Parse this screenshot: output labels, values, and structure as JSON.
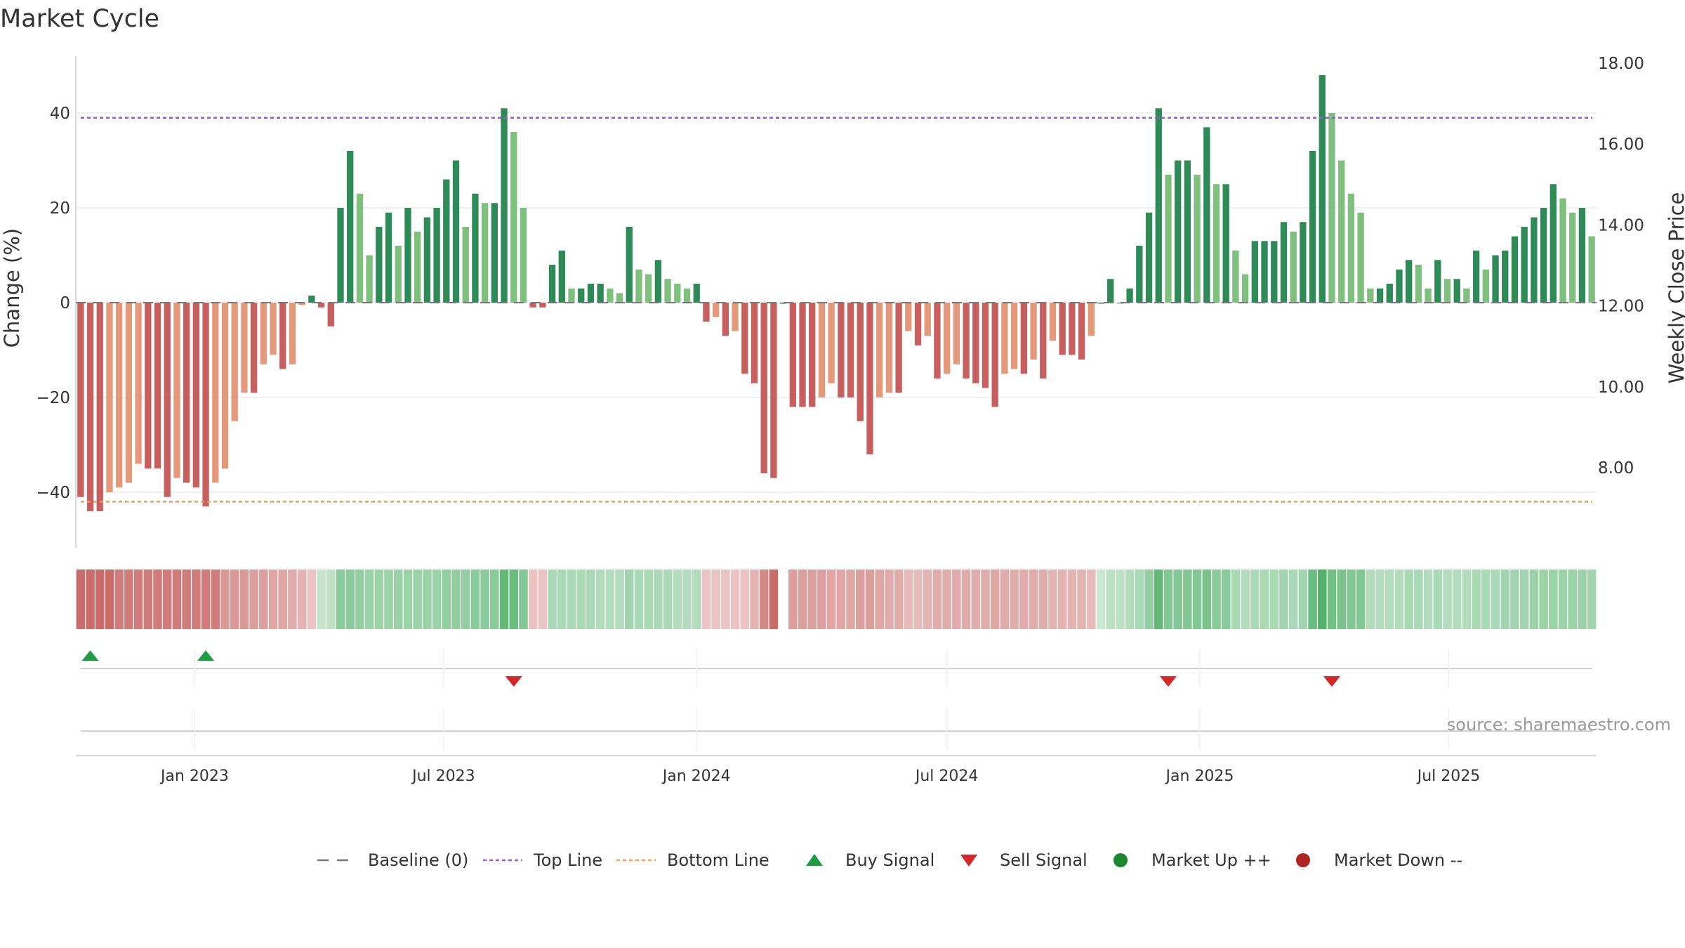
{
  "chart_data": {
    "type": "bar",
    "title": "Market Cycle",
    "ylabel": "Change (%)",
    "y2label": "Weekly Close Price",
    "ylim": [
      -52,
      52
    ],
    "y2lim": [
      6.3,
      18.5
    ],
    "yticks": [
      "40",
      "20",
      "0",
      "−20",
      "−40"
    ],
    "y2ticks": [
      "18.00",
      "16.00",
      "14.00",
      "12.00",
      "10.00",
      "8.00"
    ],
    "grid": true,
    "legend_position": "bottom",
    "start_date": "2022-10-10",
    "week_step_days": 7,
    "date_ticks": [
      {
        "date": "2023-01-01",
        "label": "Jan 2023"
      },
      {
        "date": "2023-07-01",
        "label": "Jul 2023"
      },
      {
        "date": "2024-01-01",
        "label": "Jan 2024"
      },
      {
        "date": "2024-07-01",
        "label": "Jul 2024"
      },
      {
        "date": "2025-01-01",
        "label": "Jan 2025"
      },
      {
        "date": "2025-07-01",
        "label": "Jul 2025"
      }
    ],
    "top_line": 39,
    "bottom_line": -42,
    "values": [
      -41,
      -44,
      -44,
      -40,
      -39,
      -38,
      -34,
      -35,
      -35,
      -41,
      -37,
      -38,
      -39,
      -43,
      -38,
      -35,
      -25,
      -19,
      -19,
      -13,
      -11,
      -14,
      -13,
      -0.5,
      1.5,
      -1,
      -5,
      20,
      32,
      23,
      10,
      16,
      19,
      12,
      20,
      15,
      18,
      20,
      26,
      30,
      16,
      23,
      21,
      21,
      41,
      36,
      20,
      -1,
      -1,
      8,
      11,
      3,
      3,
      4,
      4,
      3,
      2,
      16,
      7,
      6,
      9,
      5,
      4,
      3,
      4,
      -4,
      -3,
      -7,
      -6,
      -15,
      -17,
      -36,
      -37,
      0,
      -22,
      -22,
      -22,
      -20,
      -17,
      -20,
      -20,
      -25,
      -32,
      -20,
      -19,
      -19,
      -6,
      -9,
      -7,
      -16,
      -15,
      -13,
      -16,
      -17,
      -18,
      -22,
      -15,
      -14,
      -15,
      -12,
      -16,
      -8,
      -11,
      -11,
      -12,
      -7,
      0,
      5,
      0,
      3,
      12,
      19,
      41,
      27,
      30,
      30,
      27,
      37,
      25,
      25,
      11,
      6,
      13,
      13,
      13,
      17,
      15,
      17,
      32,
      48,
      40,
      30,
      23,
      19,
      3,
      3,
      4,
      7,
      9,
      8,
      3,
      9,
      5,
      5,
      3,
      11,
      7,
      10,
      11,
      14,
      16,
      18,
      20,
      25,
      22,
      19,
      20,
      14
    ],
    "cycle_strength": [
      -0.8,
      -0.8,
      -0.8,
      -0.8,
      -0.7,
      -0.7,
      -0.7,
      -0.7,
      -0.7,
      -0.7,
      -0.7,
      -0.7,
      -0.7,
      -0.7,
      -0.7,
      -0.5,
      -0.5,
      -0.5,
      -0.45,
      -0.45,
      -0.4,
      -0.4,
      -0.35,
      -0.3,
      -0.2,
      0.15,
      0.2,
      0.5,
      0.5,
      0.45,
      0.4,
      0.4,
      0.4,
      0.4,
      0.4,
      0.4,
      0.4,
      0.4,
      0.45,
      0.45,
      0.45,
      0.5,
      0.5,
      0.5,
      0.75,
      0.7,
      0.55,
      -0.2,
      -0.2,
      0.3,
      0.3,
      0.3,
      0.3,
      0.3,
      0.25,
      0.25,
      0.25,
      0.35,
      0.3,
      0.3,
      0.3,
      0.3,
      0.25,
      0.25,
      0.25,
      -0.2,
      -0.2,
      -0.2,
      -0.2,
      -0.2,
      -0.3,
      -0.6,
      -0.8,
      null,
      -0.45,
      -0.45,
      -0.45,
      -0.45,
      -0.4,
      -0.4,
      -0.4,
      -0.45,
      -0.45,
      -0.4,
      -0.35,
      -0.35,
      -0.25,
      -0.25,
      -0.3,
      -0.35,
      -0.35,
      -0.35,
      -0.35,
      -0.35,
      -0.35,
      -0.4,
      -0.35,
      -0.35,
      -0.35,
      -0.35,
      -0.35,
      -0.3,
      -0.3,
      -0.3,
      -0.3,
      -0.25,
      0.1,
      0.2,
      0.2,
      0.25,
      0.3,
      0.45,
      0.75,
      0.55,
      0.55,
      0.55,
      0.55,
      0.6,
      0.5,
      0.5,
      0.3,
      0.25,
      0.3,
      0.3,
      0.3,
      0.35,
      0.3,
      0.35,
      0.7,
      0.85,
      0.65,
      0.6,
      0.55,
      0.55,
      0.25,
      0.25,
      0.25,
      0.25,
      0.3,
      0.3,
      0.25,
      0.3,
      0.25,
      0.25,
      0.25,
      0.3,
      0.3,
      0.3,
      0.35,
      0.35,
      0.35,
      0.4,
      0.4,
      0.4,
      0.4,
      0.4,
      0.4,
      0.35
    ],
    "buy_signals": [
      1,
      13
    ],
    "sell_signals": [
      45,
      113,
      130
    ],
    "legend": [
      {
        "key": "baseline",
        "label": "Baseline (0)",
        "marker": "dash",
        "color": "#777777"
      },
      {
        "key": "top",
        "label": "Top Line",
        "marker": "dotted",
        "color": "#9b59d0"
      },
      {
        "key": "bottom",
        "label": "Bottom Line",
        "marker": "dotted",
        "color": "#e8a060"
      },
      {
        "key": "buy",
        "label": "Buy Signal",
        "marker": "triangle-up",
        "color": "#1e9e44"
      },
      {
        "key": "sell",
        "label": "Sell Signal",
        "marker": "triangle-down",
        "color": "#d62728"
      },
      {
        "key": "up",
        "label": "Market Up ++",
        "marker": "circle",
        "color": "#1b8a2e"
      },
      {
        "key": "down",
        "label": "Market Down --",
        "marker": "circle",
        "color": "#b22222"
      }
    ],
    "source": "source: sharemaestro.com",
    "colors": {
      "strong_up": "#2e8b57",
      "light_up": "#7fc07f",
      "strong_down": "#c85f5f",
      "light_down": "#e49a7a",
      "heat_green": "#3aa655",
      "heat_red": "#c0504d"
    }
  }
}
